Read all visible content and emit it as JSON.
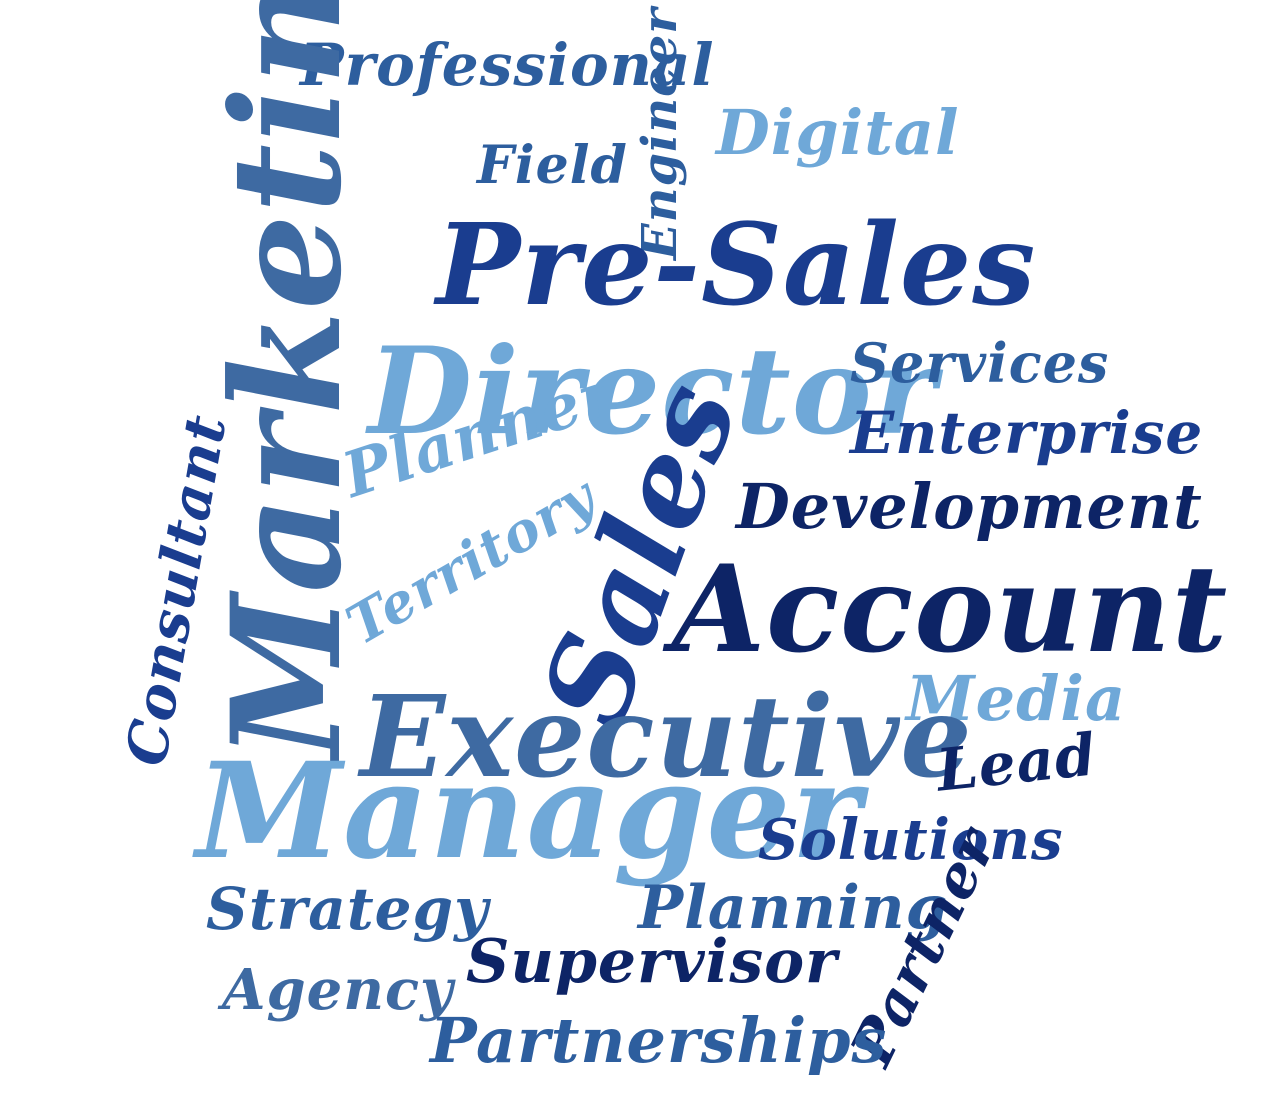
{
  "colors": {
    "navy": "#0d2466",
    "royal_blue": "#1a3d8f",
    "steel_blue": "#2d5e9e",
    "slate_blue": "#3e6aa2",
    "light_blue": "#6fa8d8"
  },
  "words": {
    "professional": "Professional",
    "engineer": "Engineer",
    "digital": "Digital",
    "field": "Field",
    "marketing": "Marketing",
    "presales": "Pre-Sales",
    "director": "Director",
    "services": "Services",
    "enterprise": "Enterprise",
    "planner": "Planner",
    "territory": "Territory",
    "sales": "Sales",
    "development": "Development",
    "account": "Account",
    "consultant": "Consultant",
    "media": "Media",
    "executive": "Executive",
    "lead": "Lead",
    "manager": "Manager",
    "solutions": "Solutions",
    "strategy": "Strategy",
    "planning": "Planning",
    "partner": "Partner",
    "supervisor": "Supervisor",
    "agency": "Agency",
    "partnerships": "Partnerships"
  },
  "word_colors": {
    "professional": "#2d5e9e",
    "engineer": "#2d5e9e",
    "digital": "#6fa8d8",
    "field": "#2d5e9e",
    "marketing": "#3e6aa2",
    "presales": "#1a3d8f",
    "director": "#6fa8d8",
    "services": "#2d5e9e",
    "enterprise": "#1a3d8f",
    "planner": "#6fa8d8",
    "territory": "#6fa8d8",
    "sales": "#1a3d8f",
    "development": "#0d2466",
    "account": "#0d2466",
    "consultant": "#1a3d8f",
    "media": "#6fa8d8",
    "executive": "#3e6aa2",
    "lead": "#0d2466",
    "manager": "#6fa8d8",
    "solutions": "#1a3d8f",
    "strategy": "#2d5e9e",
    "planning": "#2d5e9e",
    "partner": "#0d2466",
    "supervisor": "#0d2466",
    "agency": "#3e6aa2",
    "partnerships": "#2d5e9e"
  }
}
